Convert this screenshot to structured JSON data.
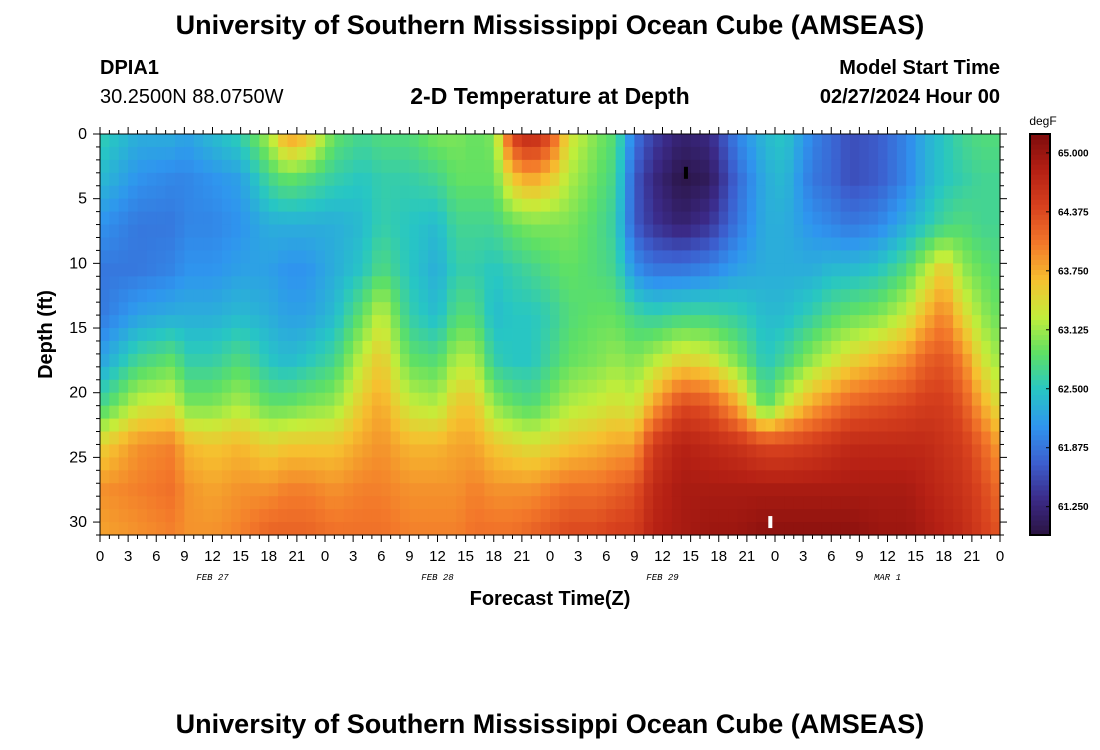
{
  "header": {
    "title": "University of Southern Mississippi Ocean Cube (AMSEAS)",
    "station_id": "DPIA1",
    "coordinates": "30.2500N  88.0750W",
    "subtitle": "2-D Temperature at Depth",
    "model_start_label": "Model Start Time",
    "model_start_value": "02/27/2024 Hour 00"
  },
  "footer": {
    "title": "University of Southern Mississippi Ocean Cube (AMSEAS)"
  },
  "chart_data": {
    "type": "heatmap",
    "title": "2-D Temperature at Depth",
    "xlabel": "Forecast Time(Z)",
    "ylabel": "Depth (ft)",
    "x_ticks": [
      "0",
      "3",
      "6",
      "9",
      "12",
      "15",
      "18",
      "21",
      "0",
      "3",
      "6",
      "9",
      "12",
      "15",
      "18",
      "21",
      "0",
      "3",
      "6",
      "9",
      "12",
      "15",
      "18",
      "21",
      "0",
      "3",
      "6",
      "9",
      "12",
      "15",
      "18",
      "21",
      "0"
    ],
    "date_labels": [
      {
        "label": "FEB 27",
        "hour": 12
      },
      {
        "label": "FEB 28",
        "hour": 36
      },
      {
        "label": "FEB 29",
        "hour": 60
      },
      {
        "label": "MAR 1",
        "hour": 84
      }
    ],
    "xlim": [
      0,
      96
    ],
    "y_ticks": [
      "0",
      "5",
      "10",
      "15",
      "20",
      "25",
      "30"
    ],
    "ylim": [
      0,
      31
    ],
    "colorbar": {
      "unit": "degF",
      "tick_labels": [
        "65.000",
        "64.375",
        "63.750",
        "63.125",
        "62.500",
        "61.875",
        "61.250"
      ],
      "range": [
        60.95,
        65.2
      ],
      "colors": [
        "#2a1340",
        "#3b2a88",
        "#3c5fcf",
        "#2f95ef",
        "#27c6c4",
        "#5ee065",
        "#c3ee3a",
        "#f6c02f",
        "#f3782a",
        "#d8421e",
        "#b52014",
        "#7e0c0c"
      ]
    },
    "markers": [
      {
        "hour": 62.5,
        "depth": 3,
        "color": "#000000"
      },
      {
        "hour": 71.5,
        "depth": 30,
        "color": "#ffffff"
      }
    ],
    "columns": [
      {
        "hour": 0,
        "values": [
          62.6,
          62.4,
          62.1,
          61.9,
          61.9,
          62.2,
          62.7,
          63.5,
          63.9,
          63.8
        ]
      },
      {
        "hour": 4,
        "values": [
          62.3,
          62.1,
          61.9,
          61.9,
          62.2,
          62.7,
          63.3,
          63.9,
          64.0,
          63.9
        ]
      },
      {
        "hour": 8,
        "values": [
          62.3,
          62.0,
          61.9,
          62.0,
          62.3,
          62.9,
          63.4,
          64.0,
          64.1,
          64.0
        ]
      },
      {
        "hour": 9,
        "values": [
          62.2,
          62.0,
          62.0,
          62.1,
          62.3,
          62.6,
          63.0,
          63.7,
          63.9,
          63.9
        ]
      },
      {
        "hour": 12,
        "values": [
          62.4,
          62.1,
          62.0,
          62.1,
          62.3,
          62.6,
          63.0,
          63.6,
          63.8,
          63.9
        ]
      },
      {
        "hour": 15,
        "values": [
          62.6,
          62.2,
          62.1,
          62.2,
          62.4,
          62.8,
          63.2,
          63.7,
          63.9,
          64.0
        ]
      },
      {
        "hour": 18,
        "values": [
          63.2,
          62.7,
          62.3,
          62.2,
          62.3,
          62.5,
          62.9,
          63.5,
          63.9,
          64.2
        ]
      },
      {
        "hour": 20,
        "values": [
          63.9,
          62.9,
          62.3,
          62.1,
          62.2,
          62.4,
          62.9,
          63.6,
          64.0,
          64.2
        ]
      },
      {
        "hour": 22,
        "values": [
          63.7,
          62.8,
          62.3,
          62.1,
          62.2,
          62.5,
          63.0,
          63.6,
          64.0,
          64.2
        ]
      },
      {
        "hour": 25,
        "values": [
          62.9,
          62.6,
          62.3,
          62.3,
          62.4,
          62.7,
          63.1,
          63.6,
          63.9,
          64.1
        ]
      },
      {
        "hour": 28,
        "values": [
          62.7,
          62.5,
          62.4,
          62.5,
          62.9,
          63.3,
          63.6,
          63.8,
          64.0,
          64.1
        ]
      },
      {
        "hour": 30,
        "values": [
          62.8,
          62.6,
          62.6,
          62.8,
          63.3,
          63.6,
          63.8,
          63.9,
          64.0,
          64.1
        ]
      },
      {
        "hour": 33,
        "values": [
          62.8,
          62.6,
          62.5,
          62.5,
          62.6,
          62.9,
          63.3,
          63.7,
          63.9,
          64.0
        ]
      },
      {
        "hour": 36,
        "values": [
          63.0,
          62.7,
          62.4,
          62.3,
          62.4,
          62.8,
          63.2,
          63.7,
          63.9,
          64.0
        ]
      },
      {
        "hour": 38,
        "values": [
          63.0,
          62.9,
          62.7,
          62.6,
          62.8,
          63.2,
          63.6,
          63.8,
          63.9,
          64.0
        ]
      },
      {
        "hour": 40,
        "values": [
          62.9,
          62.9,
          62.7,
          62.6,
          62.8,
          63.2,
          63.6,
          63.8,
          64.0,
          64.1
        ]
      },
      {
        "hour": 42,
        "values": [
          63.0,
          62.9,
          62.7,
          62.5,
          62.4,
          62.6,
          63.1,
          63.6,
          63.9,
          64.1
        ]
      },
      {
        "hour": 44,
        "values": [
          64.5,
          63.6,
          62.9,
          62.6,
          62.5,
          62.5,
          62.9,
          63.5,
          63.9,
          64.1
        ]
      },
      {
        "hour": 46,
        "values": [
          64.8,
          63.8,
          63.0,
          62.7,
          62.5,
          62.5,
          62.8,
          63.4,
          63.9,
          64.2
        ]
      },
      {
        "hour": 48,
        "values": [
          64.4,
          63.6,
          63.0,
          62.8,
          62.6,
          62.7,
          63.0,
          63.5,
          64.0,
          64.3
        ]
      },
      {
        "hour": 50,
        "values": [
          63.4,
          63.2,
          63.0,
          62.9,
          62.8,
          62.9,
          63.2,
          63.6,
          64.1,
          64.4
        ]
      },
      {
        "hour": 53,
        "values": [
          63.0,
          62.9,
          62.8,
          62.8,
          62.9,
          63.0,
          63.3,
          63.7,
          64.1,
          64.4
        ]
      },
      {
        "hour": 55,
        "values": [
          62.8,
          62.7,
          62.6,
          62.7,
          62.9,
          63.1,
          63.4,
          63.8,
          64.2,
          64.5
        ]
      },
      {
        "hour": 57,
        "values": [
          61.9,
          61.7,
          61.7,
          62.1,
          62.7,
          63.0,
          63.3,
          63.8,
          64.3,
          64.5
        ]
      },
      {
        "hour": 59,
        "values": [
          61.5,
          61.3,
          61.4,
          61.9,
          62.6,
          63.2,
          63.8,
          64.5,
          64.7,
          64.8
        ]
      },
      {
        "hour": 62,
        "values": [
          61.2,
          61.0,
          61.2,
          61.9,
          62.7,
          63.5,
          64.4,
          64.8,
          64.9,
          64.9
        ]
      },
      {
        "hour": 65,
        "values": [
          61.3,
          61.1,
          61.4,
          62.0,
          62.7,
          63.4,
          64.3,
          64.7,
          64.9,
          65.0
        ]
      },
      {
        "hour": 68,
        "values": [
          62.0,
          61.8,
          61.9,
          62.2,
          62.6,
          63.0,
          63.8,
          64.6,
          64.9,
          65.0
        ]
      },
      {
        "hour": 71,
        "values": [
          62.4,
          62.3,
          62.3,
          62.3,
          62.4,
          62.5,
          62.8,
          64.4,
          64.9,
          65.1
        ]
      },
      {
        "hour": 73,
        "values": [
          62.5,
          62.4,
          62.3,
          62.3,
          62.4,
          62.7,
          63.3,
          64.4,
          64.9,
          65.1
        ]
      },
      {
        "hour": 76,
        "values": [
          62.0,
          61.9,
          62.1,
          62.3,
          62.6,
          63.1,
          63.8,
          64.5,
          64.9,
          65.1
        ]
      },
      {
        "hour": 78,
        "values": [
          61.8,
          61.8,
          62.0,
          62.4,
          62.8,
          63.3,
          64.0,
          64.6,
          64.9,
          65.1
        ]
      },
      {
        "hour": 80,
        "values": [
          61.6,
          61.6,
          61.9,
          62.4,
          62.9,
          63.5,
          64.2,
          64.7,
          64.9,
          65.1
        ]
      },
      {
        "hour": 83,
        "values": [
          61.7,
          61.7,
          62.0,
          62.5,
          63.0,
          63.7,
          64.3,
          64.7,
          64.9,
          65.0
        ]
      },
      {
        "hour": 86,
        "values": [
          62.0,
          62.0,
          62.3,
          62.8,
          63.3,
          63.9,
          64.4,
          64.7,
          64.9,
          65.0
        ]
      },
      {
        "hour": 88,
        "values": [
          62.3,
          62.3,
          62.5,
          63.2,
          63.7,
          64.2,
          64.5,
          64.7,
          64.8,
          64.9
        ]
      },
      {
        "hour": 90,
        "values": [
          62.5,
          62.5,
          62.7,
          63.6,
          64.0,
          64.3,
          64.5,
          64.6,
          64.7,
          64.8
        ]
      },
      {
        "hour": 92,
        "values": [
          62.7,
          62.6,
          62.8,
          63.1,
          63.5,
          64.0,
          64.3,
          64.5,
          64.6,
          64.7
        ]
      },
      {
        "hour": 94,
        "values": [
          62.8,
          62.7,
          62.7,
          62.9,
          63.1,
          63.4,
          63.8,
          64.2,
          64.4,
          64.5
        ]
      },
      {
        "hour": 96,
        "values": [
          62.8,
          62.7,
          62.7,
          62.8,
          62.9,
          63.1,
          63.4,
          63.8,
          64.1,
          64.3
        ]
      }
    ],
    "column_depths": [
      0,
      3.5,
      7,
      10.5,
      14,
      17.5,
      21,
      24,
      27.5,
      31
    ]
  }
}
